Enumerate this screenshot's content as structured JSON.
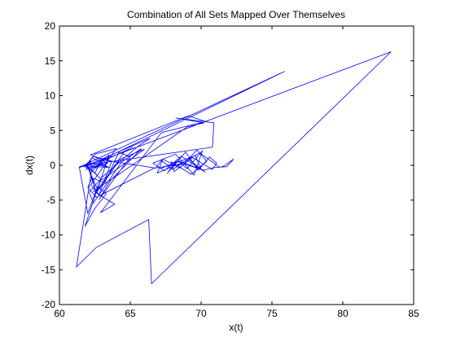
{
  "chart_data": {
    "type": "line",
    "title": "Combination of All Sets Mapped Over Themselves",
    "xlabel": "x(t)",
    "ylabel": "dx(t)",
    "xlim": [
      60,
      85
    ],
    "ylim": [
      -20,
      20
    ],
    "xticks": [
      60,
      65,
      70,
      75,
      80,
      85
    ],
    "yticks": [
      -20,
      -15,
      -10,
      -5,
      0,
      5,
      10,
      15,
      20
    ],
    "grid": false,
    "line_color": "#0000ff",
    "series": [
      {
        "x": [
          61.8,
          62.1,
          62.6,
          63.1,
          61.9,
          62.3,
          63.4,
          62.0,
          61.8,
          62.5,
          64.0,
          62.2,
          62.8,
          63.7,
          62.4,
          61.9,
          62.7,
          64.6,
          65.2,
          62.1,
          63.0,
          66.0,
          64.3,
          62.6,
          63.5,
          62.3,
          62.9,
          65.4,
          66.4,
          62.2,
          61.4,
          62.6,
          75.9,
          61.7,
          62.5,
          63.0,
          66.8,
          67.2,
          68.0,
          69.1,
          70.3,
          68.6,
          67.4,
          66.6,
          68.2,
          69.5,
          70.1,
          69.0,
          68.3,
          67.6,
          68.9,
          69.8,
          70.6,
          71.1,
          70.8,
          69.4,
          68.1,
          67.9,
          69.3,
          70.4,
          69.7,
          68.5,
          67.3,
          66.9,
          68.7,
          69.9,
          71.3,
          71.6,
          72.3,
          71.8,
          70.9,
          70.2,
          68.4,
          67.1,
          69.6,
          70.0,
          68.8,
          66.7,
          62.6,
          62.0,
          62.3,
          63.2,
          64.2,
          65.0,
          62.8,
          63.6,
          65.8,
          64.4,
          62.4,
          62.1,
          62.9,
          61.8,
          62.5,
          63.3,
          62.7,
          62.0,
          61.4,
          62.2,
          83.4,
          66.5,
          66.3,
          62.6,
          61.2,
          62.3,
          63.4,
          62.2,
          69.1,
          70.3,
          67.2,
          62.9,
          63.9,
          62.4,
          64.2,
          69.0,
          70.2,
          68.2,
          70.9,
          70.8,
          62.5,
          63.5,
          62.0,
          62.6,
          62.1,
          61.9
        ],
        "y": [
          -0.1,
          0.2,
          -0.4,
          0.3,
          -0.6,
          1.1,
          -0.2,
          0.4,
          -0.3,
          1.6,
          2.4,
          -2.8,
          -4.2,
          0.6,
          1.3,
          0.1,
          -3.5,
          2.0,
          2.6,
          -0.3,
          -2.1,
          2.3,
          0.9,
          -4.0,
          1.5,
          -0.8,
          -1.9,
          2.5,
          3.9,
          0.2,
          -0.2,
          0.4,
          13.5,
          0.0,
          -1.1,
          0.8,
          -0.4,
          0.7,
          -0.6,
          0.9,
          -1.0,
          1.3,
          -0.8,
          0.3,
          1.6,
          -1.4,
          2.1,
          -0.5,
          0.8,
          -1.2,
          1.9,
          -0.7,
          1.2,
          0.3,
          -0.6,
          1.1,
          -0.9,
          0.5,
          -1.3,
          0.6,
          2.2,
          -0.4,
          0.9,
          -1.1,
          0.4,
          1.8,
          -0.3,
          -0.1,
          0.9,
          -0.2,
          -0.3,
          -0.7,
          0.6,
          -0.5,
          1.4,
          -0.6,
          0.2,
          -0.4,
          -4.6,
          -3.2,
          -1.8,
          -2.5,
          1.9,
          1.2,
          -4.9,
          -2.2,
          2.4,
          0.5,
          -5.4,
          -3.9,
          -2.0,
          -8.8,
          -6.2,
          -4.1,
          -3.0,
          -6.9,
          -0.3,
          0.1,
          16.3,
          -17.0,
          -7.8,
          -11.8,
          -14.6,
          -0.4,
          0.3,
          1.5,
          7.1,
          6.3,
          4.7,
          -6.8,
          -5.6,
          -3.7,
          -1.3,
          5.5,
          6.1,
          6.8,
          6.1,
          2.6,
          0.2,
          -0.3,
          -0.1,
          -4.0,
          -0.4,
          -0.1
        ]
      }
    ]
  }
}
